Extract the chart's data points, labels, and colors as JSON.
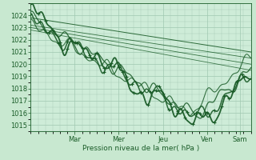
{
  "bg_color": "#c8e8d0",
  "plot_bg_color": "#ceecd8",
  "grid_color": "#a0c8b0",
  "line_color": "#1a5c28",
  "xlabel": "Pression niveau de la mer( hPa )",
  "ylim": [
    1014.5,
    1025.0
  ],
  "yticks": [
    1015,
    1016,
    1017,
    1018,
    1019,
    1020,
    1021,
    1022,
    1023,
    1024
  ],
  "day_labels": [
    "Mar",
    "Mer",
    "Jeu",
    "Ven",
    "Sam"
  ],
  "day_positions": [
    1.0,
    2.0,
    3.0,
    4.0,
    4.75
  ],
  "xlim": [
    0,
    5.0
  ],
  "title_fontsize": 6,
  "tick_fontsize": 6
}
